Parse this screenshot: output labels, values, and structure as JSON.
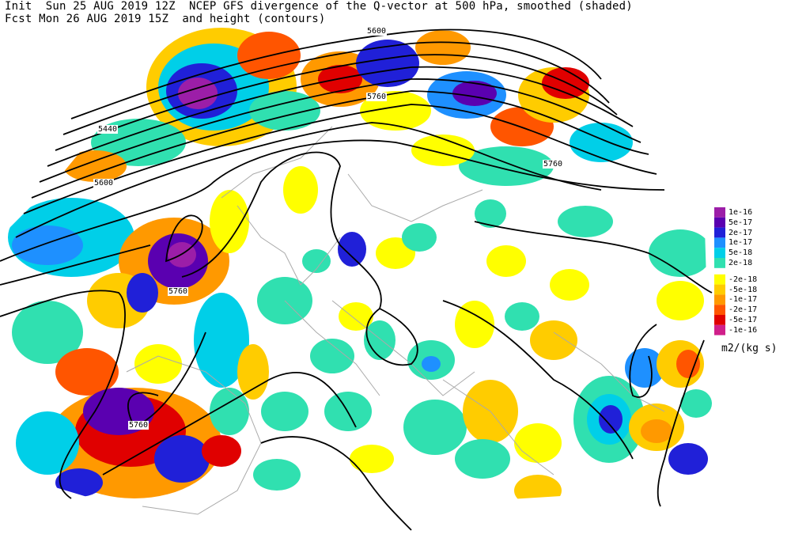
{
  "header": {
    "line1": "Init  Sun 25 AUG 2019 12Z  NCEP GFS divergence of the Q-vector at 500 hPa, smoothed (shaded)",
    "line2": "Fcst Mon 26 AUG 2019 15Z  and height (contours)"
  },
  "contour_labels": [
    "5440",
    "5600",
    "5760",
    "5600",
    "5760",
    "5760",
    "5760",
    "5760"
  ],
  "colorbar": {
    "units": "m2/(kg s)",
    "positive": [
      {
        "label": "1e-16",
        "color": "#9c1ea8"
      },
      {
        "label": "5e-17",
        "color": "#5a00b0"
      },
      {
        "label": "2e-17",
        "color": "#2020d8"
      },
      {
        "label": "1e-17",
        "color": "#1e90ff"
      },
      {
        "label": "5e-18",
        "color": "#00cfe8"
      },
      {
        "label": "2e-18",
        "color": "#30e0b0"
      }
    ],
    "negative": [
      {
        "label": "-2e-18",
        "color": "#ffff00"
      },
      {
        "label": "-5e-18",
        "color": "#ffcc00"
      },
      {
        "label": "-1e-17",
        "color": "#ff9900"
      },
      {
        "label": "-2e-17",
        "color": "#ff5500"
      },
      {
        "label": "-5e-17",
        "color": "#e00000"
      },
      {
        "label": "-1e-16",
        "color": "#d0208a"
      }
    ]
  }
}
